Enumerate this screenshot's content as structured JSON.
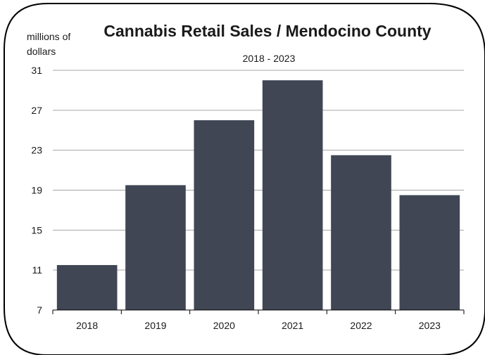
{
  "chart_data": {
    "type": "bar",
    "title": "Cannabis Retail Sales / Mendocino County",
    "subtitle": "2018 - 2023",
    "ylabel_lines": [
      "millions of",
      "dollars"
    ],
    "categories": [
      "2018",
      "2019",
      "2020",
      "2021",
      "2022",
      "2023"
    ],
    "values": [
      11.5,
      19.5,
      26.0,
      30.0,
      22.5,
      18.5
    ],
    "ylim": [
      7,
      31
    ],
    "yticks": [
      7,
      11,
      15,
      19,
      23,
      27,
      31
    ],
    "grid": true,
    "legend": "none",
    "bar_color": "#404654",
    "grid_color": "#a6a6a6"
  }
}
